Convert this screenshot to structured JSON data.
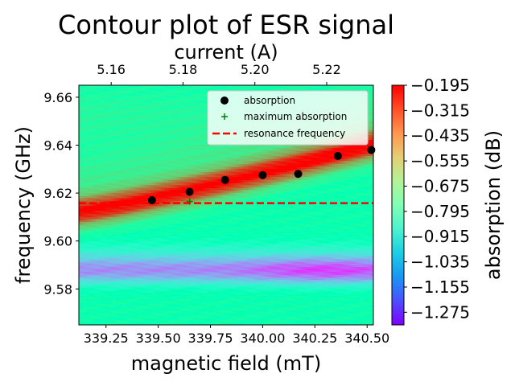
{
  "chart_data": {
    "type": "heatmap",
    "title": "Contour plot of ESR signal",
    "xlabel": "magnetic field (mT)",
    "ylabel": "frequency (GHz)",
    "x2label": "current (A)",
    "colorbar_label": "absorption (dB)",
    "xlim": [
      339.12,
      340.53
    ],
    "ylim": [
      9.565,
      9.665
    ],
    "x2lim": [
      5.151,
      5.233
    ],
    "x_ticks": [
      "339.25",
      "339.50",
      "339.75",
      "340.00",
      "340.25",
      "340.50"
    ],
    "y_ticks": [
      "9.58",
      "9.60",
      "9.62",
      "9.64",
      "9.66"
    ],
    "x2_ticks": [
      "5.16",
      "5.18",
      "5.20",
      "5.22"
    ],
    "colorbar_ticks": [
      "−0.195",
      "−0.315",
      "−0.435",
      "−0.555",
      "−0.675",
      "−0.795",
      "−0.915",
      "−1.035",
      "−1.155",
      "−1.275"
    ],
    "colorbar_range": [
      -1.335,
      -0.195
    ],
    "colormap": "rainbow",
    "grid": false,
    "legend_position": "top-right",
    "series": [
      {
        "name": "absorption",
        "type": "scatter",
        "color": "#000000",
        "marker": "circle",
        "x": [
          339.47,
          339.65,
          339.82,
          340.0,
          340.17,
          340.36,
          340.52
        ],
        "y": [
          9.617,
          9.6205,
          9.6255,
          9.6275,
          9.628,
          9.6355,
          9.638
        ]
      },
      {
        "name": "maximum absorption",
        "type": "scatter",
        "color": "#008000",
        "marker": "plus",
        "x": [
          339.65
        ],
        "y": [
          9.6165
        ]
      },
      {
        "name": "resonance frequency",
        "type": "line",
        "color": "#ff0000",
        "style": "dashed",
        "y": 9.6158
      }
    ],
    "heatmap_description": {
      "background_level": -0.74,
      "absorption_band": "red band rising from 9.612 GHz at 339.12 mT to about 9.640 GHz at 340.53 mT",
      "trough_band": "blue band near 9.587 GHz"
    }
  }
}
